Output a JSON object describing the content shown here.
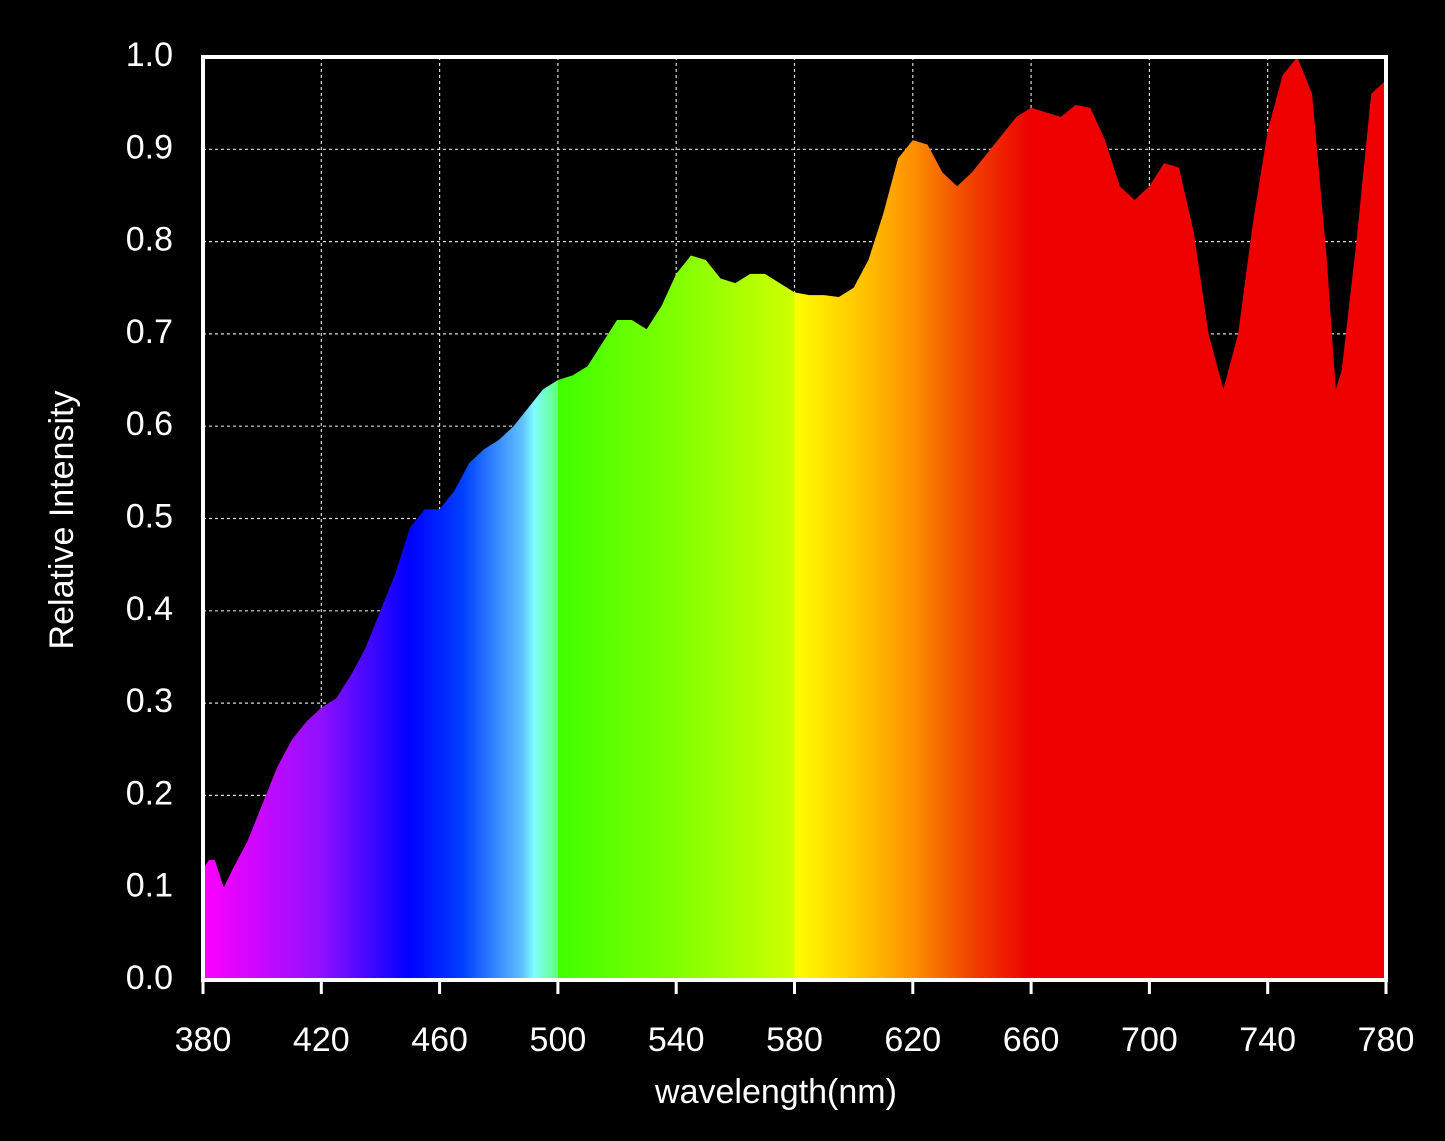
{
  "chart_data": {
    "type": "area",
    "x_label": "wavelength(nm)",
    "y_label": "Relative Intensity",
    "x": [
      380,
      382,
      384,
      387,
      390,
      395,
      400,
      405,
      410,
      415,
      420,
      425,
      430,
      435,
      440,
      445,
      450,
      455,
      460,
      465,
      470,
      475,
      480,
      485,
      490,
      495,
      500,
      505,
      510,
      515,
      520,
      525,
      530,
      535,
      540,
      545,
      550,
      555,
      560,
      565,
      570,
      575,
      580,
      585,
      590,
      595,
      600,
      605,
      610,
      615,
      620,
      625,
      630,
      635,
      640,
      645,
      650,
      655,
      660,
      665,
      670,
      675,
      680,
      685,
      690,
      695,
      700,
      705,
      710,
      715,
      720,
      725,
      730,
      735,
      740,
      745,
      750,
      755,
      760,
      763,
      765,
      770,
      775,
      780
    ],
    "values": [
      0.12,
      0.13,
      0.13,
      0.1,
      0.12,
      0.15,
      0.19,
      0.23,
      0.26,
      0.28,
      0.295,
      0.305,
      0.33,
      0.36,
      0.4,
      0.44,
      0.49,
      0.51,
      0.51,
      0.53,
      0.56,
      0.575,
      0.585,
      0.6,
      0.62,
      0.64,
      0.65,
      0.655,
      0.665,
      0.69,
      0.715,
      0.715,
      0.705,
      0.73,
      0.765,
      0.785,
      0.78,
      0.76,
      0.755,
      0.765,
      0.765,
      0.755,
      0.745,
      0.742,
      0.742,
      0.74,
      0.75,
      0.78,
      0.83,
      0.89,
      0.91,
      0.905,
      0.875,
      0.86,
      0.875,
      0.895,
      0.915,
      0.935,
      0.945,
      0.94,
      0.935,
      0.948,
      0.945,
      0.91,
      0.86,
      0.845,
      0.86,
      0.885,
      0.88,
      0.81,
      0.7,
      0.64,
      0.7,
      0.82,
      0.92,
      0.98,
      1.0,
      0.96,
      0.78,
      0.64,
      0.66,
      0.8,
      0.96,
      0.975
    ],
    "xlim": [
      380,
      780
    ],
    "ylim": [
      0,
      1
    ],
    "xticks": [
      380,
      420,
      460,
      500,
      540,
      580,
      620,
      660,
      700,
      740,
      780
    ],
    "yticks": [
      {
        "value": 0,
        "label": "0.0"
      },
      0.1,
      0.2,
      0.3,
      0.4,
      0.5,
      0.6,
      0.7,
      0.8,
      0.9,
      {
        "value": 1,
        "label": "1.0"
      }
    ],
    "grid": true
  }
}
